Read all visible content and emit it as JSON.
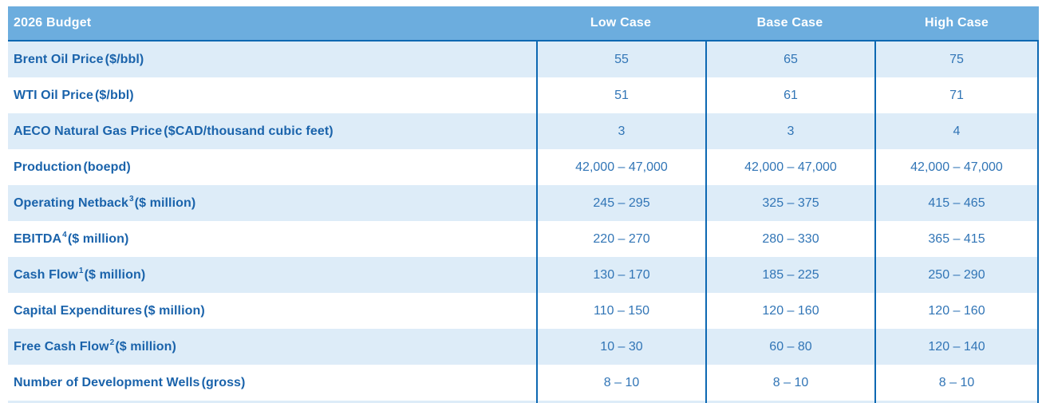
{
  "table": {
    "title": "2026 Budget",
    "columns": [
      "Low Case",
      "Base Case",
      "High Case"
    ],
    "rows": [
      {
        "label": "Brent Oil Price",
        "sup": "",
        "unit": " ($/bbl)",
        "values": [
          "55",
          "65",
          "75"
        ]
      },
      {
        "label": "WTI Oil Price",
        "sup": "",
        "unit": " ($/bbl)",
        "values": [
          "51",
          "61",
          "71"
        ]
      },
      {
        "label": "AECO Natural Gas Price",
        "sup": "",
        "unit": " ($CAD/thousand cubic feet)",
        "values": [
          "3",
          "3",
          "4"
        ]
      },
      {
        "label": "Production",
        "sup": "",
        "unit": " (boepd)",
        "values": [
          "42,000 – 47,000",
          "42,000 – 47,000",
          "42,000 – 47,000"
        ]
      },
      {
        "label": "Operating Netback",
        "sup": "3",
        "unit": " ($ million)",
        "values": [
          "245 – 295",
          "325 – 375",
          "415 – 465"
        ]
      },
      {
        "label": "EBITDA",
        "sup": "4",
        "unit": " ($ million)",
        "values": [
          "220 – 270",
          "280 – 330",
          "365 – 415"
        ]
      },
      {
        "label": "Cash Flow",
        "sup": "1",
        "unit": " ($ million)",
        "values": [
          "130 – 170",
          "185 – 225",
          "250 – 290"
        ]
      },
      {
        "label": "Capital Expenditures",
        "sup": "",
        "unit": " ($ million)",
        "values": [
          "110 – 150",
          "120 – 160",
          "120 – 160"
        ]
      },
      {
        "label": "Free Cash Flow",
        "sup": "2",
        "unit": " ($ million)",
        "values": [
          "10 – 30",
          "60 – 80",
          "120 – 140"
        ]
      },
      {
        "label": "Number of Development Wells",
        "sup": "",
        "unit": " (gross)",
        "values": [
          "8 – 10",
          "8 – 10",
          "8 – 10"
        ]
      }
    ],
    "colors": {
      "header_bg": "#6cadde",
      "header_text": "#ffffff",
      "row_bg": "#ffffff",
      "row_alt_bg": "#ddecf8",
      "label_text": "#1a63ab",
      "value_text": "#3175b6",
      "border": "#0d68b2"
    }
  }
}
